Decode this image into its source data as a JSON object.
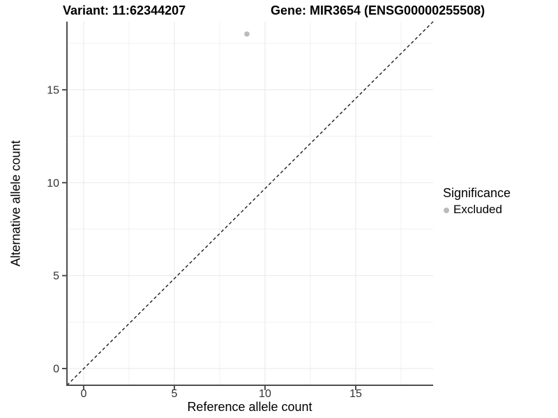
{
  "chart_data": {
    "type": "scatter",
    "title_left": "Variant: 11:62344207",
    "title_right": "Gene: MIR3654 (ENSG00000255508)",
    "xlabel": "Reference allele count",
    "ylabel": "Alternative allele count",
    "xlim": [
      -0.92,
      19.27
    ],
    "ylim": [
      -0.9,
      18.67
    ],
    "xticks": [
      0,
      5,
      10,
      15
    ],
    "yticks": [
      0,
      5,
      10,
      15
    ],
    "minor_gridlines_x": [
      2.5,
      7.5,
      12.5,
      17.5
    ],
    "minor_gridlines_y": [
      2.5,
      7.5,
      12.5,
      17.5
    ],
    "grid": true,
    "series": [
      {
        "name": "Excluded",
        "color": "#bbbbbb",
        "points": [
          {
            "x": 9,
            "y": 18
          }
        ]
      }
    ],
    "reference_line": {
      "type": "identity",
      "slope": 1,
      "intercept": 0,
      "style": "dashed",
      "color": "#1a1a1a"
    },
    "legend": {
      "title": "Significance",
      "position": "right",
      "items": [
        {
          "label": "Excluded",
          "color": "#bbbbbb",
          "marker": "circle"
        }
      ]
    },
    "colors": {
      "grid_major": "#e8e8e8",
      "grid_minor": "#f1f1f1",
      "axis_line": "#4d4d4d",
      "tick_label": "#333333",
      "background": "#ffffff"
    }
  }
}
